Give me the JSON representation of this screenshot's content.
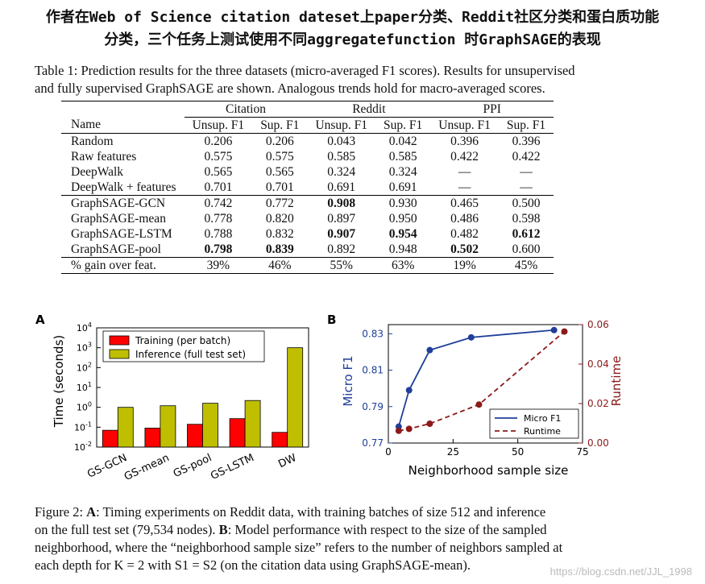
{
  "header": {
    "line1": "作者在Web of Science citation dateset上paper分类、Reddit社区分类和蛋白质功能",
    "line2": "分类，三个任务上测试使用不同aggregatefunction 时GraphSAGE的表现"
  },
  "table_caption": {
    "line1": "Table 1: Prediction results for the three datasets (micro-averaged F1 scores). Results for unsupervised",
    "line2": "and fully supervised GraphSAGE are shown. Analogous trends hold for macro-averaged scores."
  },
  "table": {
    "groups": [
      "Citation",
      "Reddit",
      "PPI"
    ],
    "columns": [
      "Name",
      "Unsup. F1",
      "Sup. F1",
      "Unsup. F1",
      "Sup. F1",
      "Unsup. F1",
      "Sup. F1"
    ],
    "rows": [
      {
        "name": "Random",
        "cells": [
          "0.206",
          "0.206",
          "0.043",
          "0.042",
          "0.396",
          "0.396"
        ],
        "bold": [
          false,
          false,
          false,
          false,
          false,
          false
        ]
      },
      {
        "name": "Raw features",
        "cells": [
          "0.575",
          "0.575",
          "0.585",
          "0.585",
          "0.422",
          "0.422"
        ],
        "bold": [
          false,
          false,
          false,
          false,
          false,
          false
        ]
      },
      {
        "name": "DeepWalk",
        "cells": [
          "0.565",
          "0.565",
          "0.324",
          "0.324",
          "—",
          "—"
        ],
        "bold": [
          false,
          false,
          false,
          false,
          false,
          false
        ]
      },
      {
        "name": "DeepWalk + features",
        "cells": [
          "0.701",
          "0.701",
          "0.691",
          "0.691",
          "—",
          "—"
        ],
        "bold": [
          false,
          false,
          false,
          false,
          false,
          false
        ]
      },
      {
        "name": "GraphSAGE-GCN",
        "cells": [
          "0.742",
          "0.772",
          "0.908",
          "0.930",
          "0.465",
          "0.500"
        ],
        "bold": [
          false,
          false,
          true,
          false,
          false,
          false
        ]
      },
      {
        "name": "GraphSAGE-mean",
        "cells": [
          "0.778",
          "0.820",
          "0.897",
          "0.950",
          "0.486",
          "0.598"
        ],
        "bold": [
          false,
          false,
          false,
          false,
          false,
          false
        ]
      },
      {
        "name": "GraphSAGE-LSTM",
        "cells": [
          "0.788",
          "0.832",
          "0.907",
          "0.954",
          "0.482",
          "0.612"
        ],
        "bold": [
          false,
          false,
          true,
          true,
          false,
          true
        ]
      },
      {
        "name": "GraphSAGE-pool",
        "cells": [
          "0.798",
          "0.839",
          "0.892",
          "0.948",
          "0.502",
          "0.600"
        ],
        "bold": [
          true,
          true,
          false,
          false,
          true,
          false
        ]
      }
    ],
    "gain_row": {
      "name": "% gain over feat.",
      "cells": [
        "39%",
        "46%",
        "55%",
        "63%",
        "19%",
        "45%"
      ]
    }
  },
  "chart_data": [
    {
      "type": "bar",
      "panel_label": "A",
      "log_scale_y": true,
      "ylabel": "Time (seconds)",
      "ylim": [
        0.01,
        10000
      ],
      "y_ticks": [
        "10^-2",
        "10^-1",
        "10^0",
        "10^1",
        "10^2",
        "10^3",
        "10^4"
      ],
      "categories": [
        "GS-GCN",
        "GS-mean",
        "GS-pool",
        "GS-LSTM",
        "DW"
      ],
      "series": [
        {
          "name": "Training (per batch)",
          "color": "#ff0000",
          "values": [
            0.07,
            0.09,
            0.14,
            0.27,
            0.055
          ]
        },
        {
          "name": "Inference (full test set)",
          "color": "#bfbf00",
          "values": [
            1.0,
            1.2,
            1.6,
            2.2,
            1000
          ]
        }
      ],
      "legend_position": "top-left"
    },
    {
      "type": "line",
      "panel_label": "B",
      "xlabel": "Neighborhood sample size",
      "xlim": [
        0,
        75
      ],
      "x_ticks": [
        "0",
        "25",
        "50",
        "75"
      ],
      "ylabel_left": "Micro F1",
      "ylim_left": [
        0.77,
        0.835
      ],
      "y_ticks_left": [
        "0.77",
        "0.79",
        "0.81",
        "0.83"
      ],
      "ylabel_right": "Runtime",
      "ylim_right": [
        0.0,
        0.06
      ],
      "y_ticks_right": [
        "0.00",
        "0.02",
        "0.04",
        "0.06"
      ],
      "left_axis_color": "#1f3f99",
      "right_axis_color": "#8b1a1a",
      "series": [
        {
          "name": "Micro F1",
          "axis": "left",
          "style": "solid",
          "color": "#1f3f99",
          "x": [
            4,
            8,
            16,
            32,
            64
          ],
          "y": [
            0.779,
            0.799,
            0.821,
            0.828,
            0.832
          ]
        },
        {
          "name": "Runtime",
          "axis": "right",
          "style": "dashed",
          "color": "#8b1a1a",
          "x": [
            4,
            8,
            16,
            35,
            68
          ],
          "y": [
            0.0062,
            0.0072,
            0.0098,
            0.0195,
            0.0565
          ]
        }
      ],
      "legend_position": "bottom-right"
    }
  ],
  "figure_caption": {
    "line1_pre": "Figure 2: ",
    "line1_a": "A",
    "line1_post": ": Timing experiments on Reddit data, with training batches of size 512 and inference",
    "line2_pre": "on the full test set (79,534 nodes). ",
    "line2_b": "B",
    "line2_post": ": Model performance with respect to the size of the sampled",
    "line3": "neighborhood, where the “neighborhood sample size” refers to the number of neighbors sampled at",
    "line4": "each depth for K = 2 with S1 = S2 (on the citation data using GraphSAGE-mean)."
  },
  "watermark": "https://blog.csdn.net/JJL_1998"
}
